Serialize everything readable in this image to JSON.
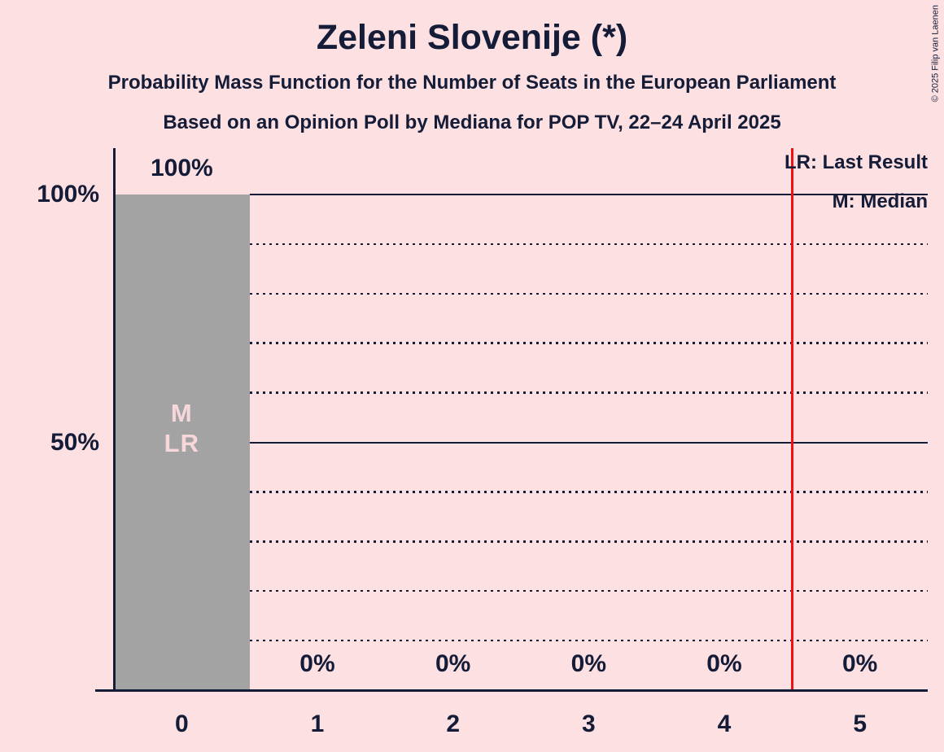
{
  "title": "Zeleni Slovenije (*)",
  "subtitle": "Probability Mass Function for the Number of Seats in the European Parliament",
  "poll_details": "Based on an Opinion Poll by Mediana for POP TV, 22–24 April 2025",
  "copyright": "© 2025 Filip van Laenen",
  "legend": {
    "last_result": "LR: Last Result",
    "median": "M: Median"
  },
  "chart_data": {
    "type": "bar",
    "categories": [
      "0",
      "1",
      "2",
      "3",
      "4",
      "5"
    ],
    "values": [
      100,
      0,
      0,
      0,
      0,
      0
    ],
    "bar_labels": [
      "100%",
      "0%",
      "0%",
      "0%",
      "0%",
      "0%"
    ],
    "title": "Zeleni Slovenije (*)",
    "xlabel": "",
    "ylabel": "",
    "ylim": [
      0,
      100
    ],
    "yticks": [
      {
        "value": 100,
        "label": "100%"
      },
      {
        "value": 50,
        "label": "50%"
      }
    ],
    "dotted_gridlines_pct": [
      10,
      20,
      30,
      40,
      60,
      70,
      80,
      90
    ],
    "median_seats": 0,
    "last_result_seats": 0,
    "bar_annotations": [
      "M",
      "LR"
    ],
    "red_line_position_seats": 4.5,
    "legend_position": "top-right",
    "grid": "horizontal-only",
    "colors": {
      "background": "#fce0e2",
      "bar": "#a3a3a3",
      "text": "#141c37",
      "red_line": "#f01212",
      "bar_annotation": "#f8d7da"
    }
  }
}
